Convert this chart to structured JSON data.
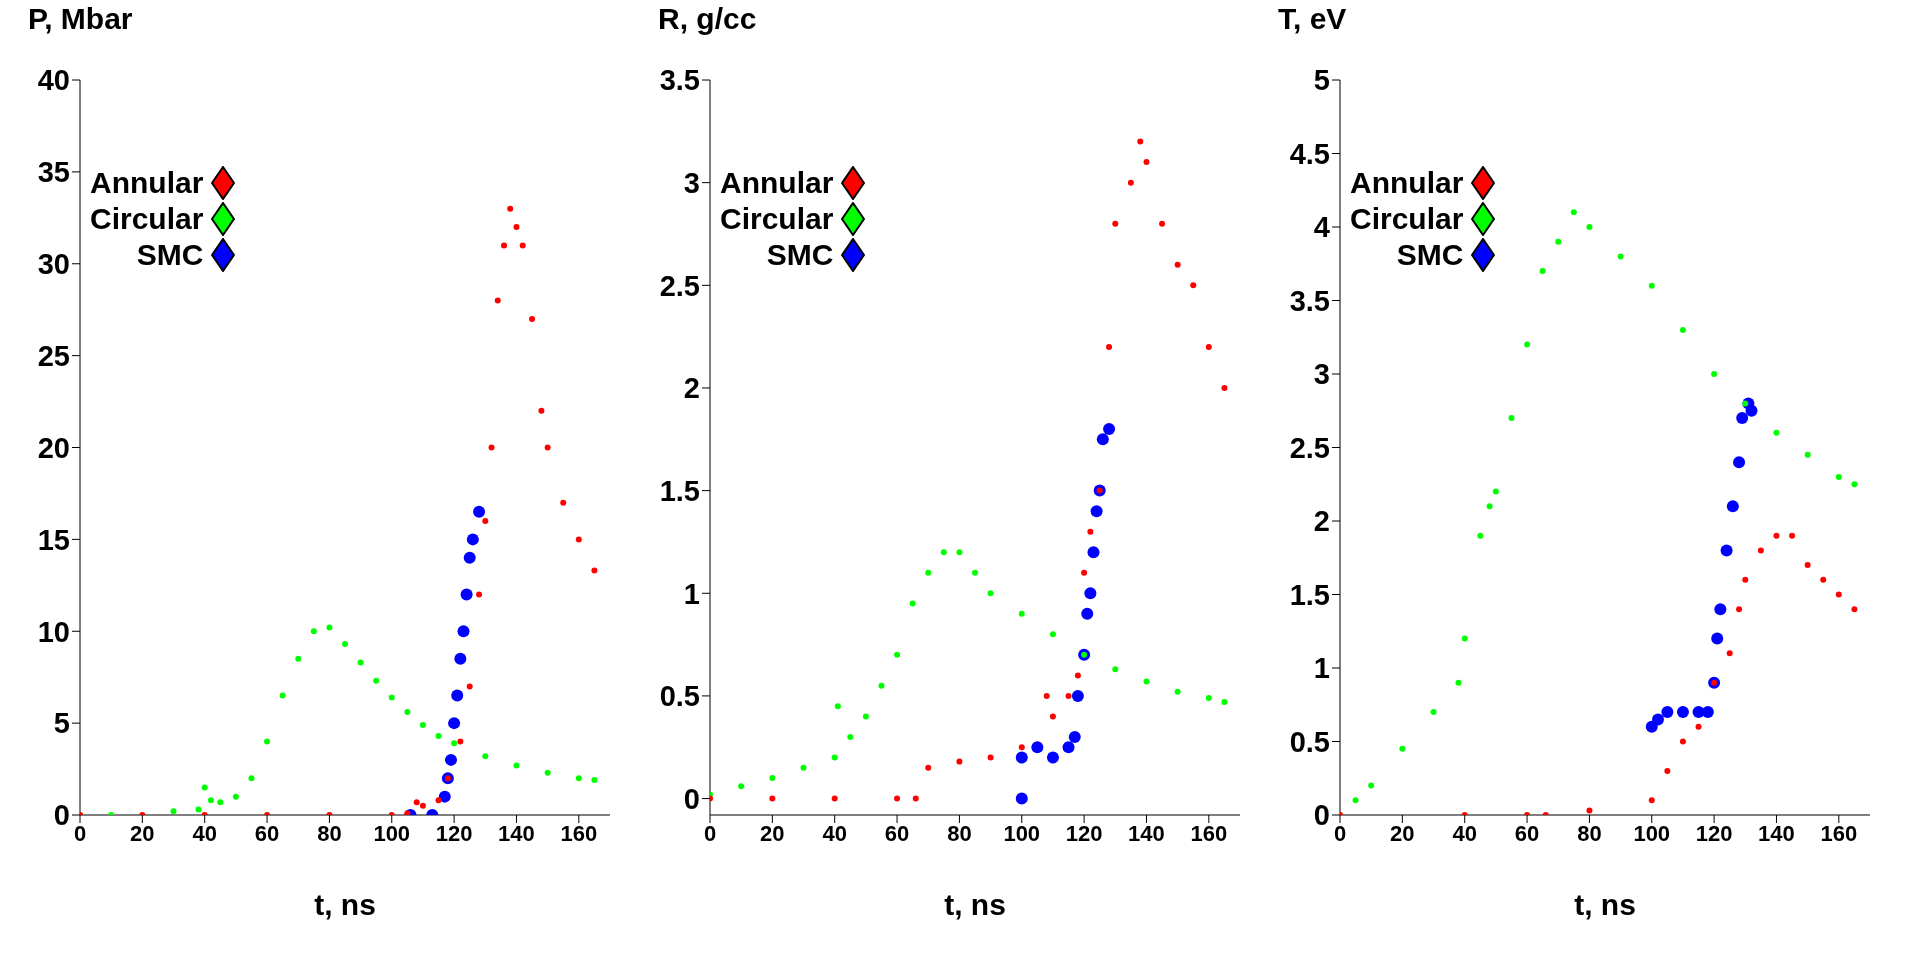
{
  "chart_data": [
    {
      "type": "scatter",
      "ylabel": "P, Mbar",
      "xlabel": "t, ns",
      "xlim": [
        0,
        170
      ],
      "xticks": [
        0,
        20,
        40,
        60,
        80,
        100,
        120,
        140,
        160
      ],
      "ylim": [
        0,
        40
      ],
      "yticks": [
        0,
        5,
        10,
        15,
        20,
        25,
        30,
        35,
        40
      ],
      "legend": "top left",
      "grid": false,
      "series": [
        {
          "name": "Annular",
          "color": "#ff0000",
          "x": [
            0,
            20,
            40,
            60,
            80,
            100,
            105,
            108,
            110,
            115,
            118,
            122,
            125,
            128,
            130,
            132,
            134,
            136,
            138,
            140,
            142,
            145,
            148,
            150,
            155,
            160,
            165
          ],
          "values": [
            0,
            0,
            0,
            0,
            0,
            0,
            0.1,
            0.7,
            0.5,
            0.8,
            2,
            4,
            7,
            12,
            16,
            20,
            28,
            31,
            33,
            32,
            31,
            27,
            22,
            20,
            17,
            15,
            13.3
          ]
        },
        {
          "name": "Circular",
          "color": "#00ff00",
          "x": [
            0,
            10,
            30,
            38,
            40,
            42,
            45,
            50,
            55,
            60,
            65,
            70,
            75,
            80,
            85,
            90,
            95,
            100,
            105,
            110,
            115,
            120,
            130,
            140,
            150,
            160,
            165
          ],
          "values": [
            0,
            0,
            0.2,
            0.3,
            1.5,
            0.8,
            0.7,
            1,
            2,
            4,
            6.5,
            8.5,
            10,
            10.2,
            9.3,
            8.3,
            7.3,
            6.4,
            5.6,
            4.9,
            4.3,
            3.9,
            3.2,
            2.7,
            2.3,
            2,
            1.9
          ]
        },
        {
          "name": "SMC",
          "color": "#0000ff",
          "x": [
            106,
            113,
            117,
            118,
            119,
            120,
            121,
            122,
            123,
            124,
            125,
            126,
            128
          ],
          "values": [
            0,
            0,
            1,
            2,
            3,
            5,
            6.5,
            8.5,
            10,
            12,
            14,
            15,
            16.5
          ]
        }
      ]
    },
    {
      "type": "scatter",
      "ylabel": "R, g/cc",
      "xlabel": "t, ns",
      "xlim": [
        0,
        170
      ],
      "xticks": [
        0,
        20,
        40,
        60,
        80,
        100,
        120,
        140,
        160
      ],
      "ylim": [
        -0.08,
        3.5
      ],
      "yticks": [
        0,
        0.5,
        1,
        1.5,
        2,
        2.5,
        3,
        3.5
      ],
      "legend": "top left",
      "grid": false,
      "series": [
        {
          "name": "Annular",
          "color": "#ff0000",
          "x": [
            0,
            20,
            40,
            60,
            66,
            70,
            80,
            90,
            100,
            108,
            110,
            115,
            118,
            120,
            122,
            125,
            128,
            130,
            135,
            138,
            140,
            145,
            150,
            155,
            160,
            165
          ],
          "values": [
            0,
            0,
            0,
            0,
            0,
            0.15,
            0.18,
            0.2,
            0.25,
            0.5,
            0.4,
            0.5,
            0.6,
            1.1,
            1.3,
            1.5,
            2.2,
            2.8,
            3,
            3.2,
            3.1,
            2.8,
            2.6,
            2.5,
            2.2,
            2
          ]
        },
        {
          "name": "Circular",
          "color": "#00ff00",
          "x": [
            0,
            10,
            20,
            30,
            40,
            41,
            45,
            50,
            55,
            60,
            65,
            70,
            75,
            80,
            85,
            90,
            100,
            110,
            120,
            130,
            140,
            150,
            160,
            165
          ],
          "values": [
            0.02,
            0.06,
            0.1,
            0.15,
            0.2,
            0.45,
            0.3,
            0.4,
            0.55,
            0.7,
            0.95,
            1.1,
            1.2,
            1.2,
            1.1,
            1,
            0.9,
            0.8,
            0.7,
            0.63,
            0.57,
            0.52,
            0.49,
            0.47
          ]
        },
        {
          "name": "SMC",
          "color": "#0000ff",
          "x": [
            100,
            100,
            105,
            110,
            115,
            117,
            118,
            120,
            121,
            122,
            123,
            124,
            125,
            126,
            128
          ],
          "values": [
            0,
            0.2,
            0.25,
            0.2,
            0.25,
            0.3,
            0.5,
            0.7,
            0.9,
            1,
            1.2,
            1.4,
            1.5,
            1.75,
            1.8
          ]
        }
      ]
    },
    {
      "type": "scatter",
      "ylabel": "T, eV",
      "xlabel": "t, ns",
      "xlim": [
        0,
        170
      ],
      "xticks": [
        0,
        20,
        40,
        60,
        80,
        100,
        120,
        140,
        160
      ],
      "ylim": [
        0,
        5
      ],
      "yticks": [
        0,
        0.5,
        1,
        1.5,
        2,
        2.5,
        3,
        3.5,
        4,
        4.5,
        5
      ],
      "legend": "top left",
      "grid": false,
      "series": [
        {
          "name": "Annular",
          "color": "#ff0000",
          "x": [
            0,
            40,
            60,
            66,
            80,
            100,
            105,
            110,
            115,
            120,
            125,
            128,
            130,
            135,
            140,
            145,
            150,
            155,
            160,
            165
          ],
          "values": [
            0,
            0,
            0,
            0,
            0.03,
            0.1,
            0.3,
            0.5,
            0.6,
            0.9,
            1.1,
            1.4,
            1.6,
            1.8,
            1.9,
            1.9,
            1.7,
            1.6,
            1.5,
            1.4
          ]
        },
        {
          "name": "Circular",
          "color": "#00ff00",
          "x": [
            0,
            5,
            10,
            20,
            30,
            38,
            40,
            45,
            48,
            50,
            55,
            60,
            65,
            70,
            75,
            80,
            90,
            100,
            110,
            120,
            130,
            140,
            150,
            160,
            165
          ],
          "values": [
            0,
            0.1,
            0.2,
            0.45,
            0.7,
            0.9,
            1.2,
            1.9,
            2.1,
            2.2,
            2.7,
            3.2,
            3.7,
            3.9,
            4.1,
            4,
            3.8,
            3.6,
            3.3,
            3,
            2.8,
            2.6,
            2.45,
            2.3,
            2.25
          ]
        },
        {
          "name": "SMC",
          "color": "#0000ff",
          "x": [
            100,
            102,
            105,
            110,
            115,
            118,
            120,
            121,
            122,
            124,
            126,
            128,
            129,
            131,
            132
          ],
          "values": [
            0.6,
            0.65,
            0.7,
            0.7,
            0.7,
            0.7,
            0.9,
            1.2,
            1.4,
            1.8,
            2.1,
            2.4,
            2.7,
            2.8,
            2.75
          ]
        }
      ]
    }
  ]
}
